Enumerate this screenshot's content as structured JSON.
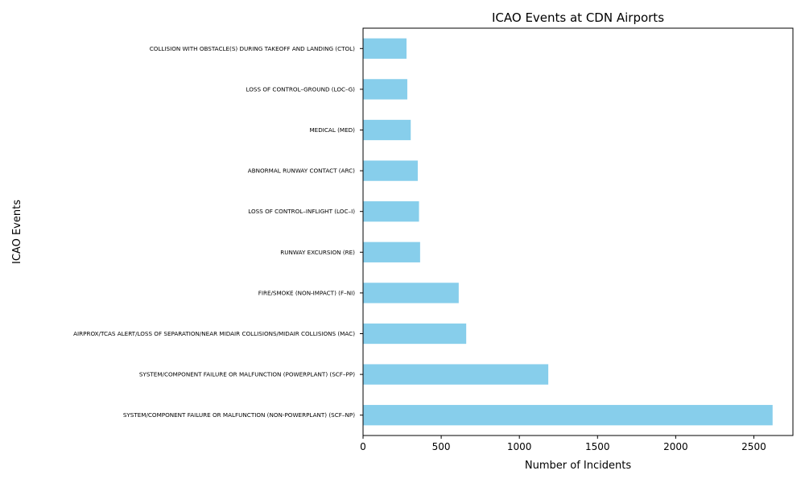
{
  "chart_data": {
    "type": "bar",
    "orientation": "horizontal",
    "title": "ICAO Events at CDN Airports",
    "xlabel": "Number of Incidents",
    "ylabel": "ICAO Events",
    "xlim": [
      0,
      2750
    ],
    "xticks": [
      0,
      500,
      1000,
      1500,
      2000,
      2500
    ],
    "grid": false,
    "bar_color": "#87ceeb",
    "categories": [
      "SYSTEM/COMPONENT FAILURE OR MALFUNCTION (NON-POWERPLANT) (SCF–NP)",
      "SYSTEM/COMPONENT FAILURE OR MALFUNCTION (POWERPLANT) (SCF–PP)",
      "AIRPROX/TCAS ALERT/LOSS OF SEPARATION/NEAR MIDAIR COLLISIONS/MIDAIR COLLISIONS (MAC)",
      "FIRE/SMOKE (NON-IMPACT) (F–NI)",
      "RUNWAY EXCURSION (RE)",
      "LOSS OF CONTROL–INFLIGHT (LOC–I)",
      "ABNORMAL RUNWAY CONTACT (ARC)",
      "MEDICAL (MED)",
      "LOSS OF CONTROL–GROUND (LOC–G)",
      "COLLISION WITH OBSTACLE(S) DURING TAKEOFF AND LANDING (CTOL)"
    ],
    "values": [
      2620,
      1185,
      660,
      612,
      365,
      358,
      350,
      305,
      283,
      278
    ]
  }
}
